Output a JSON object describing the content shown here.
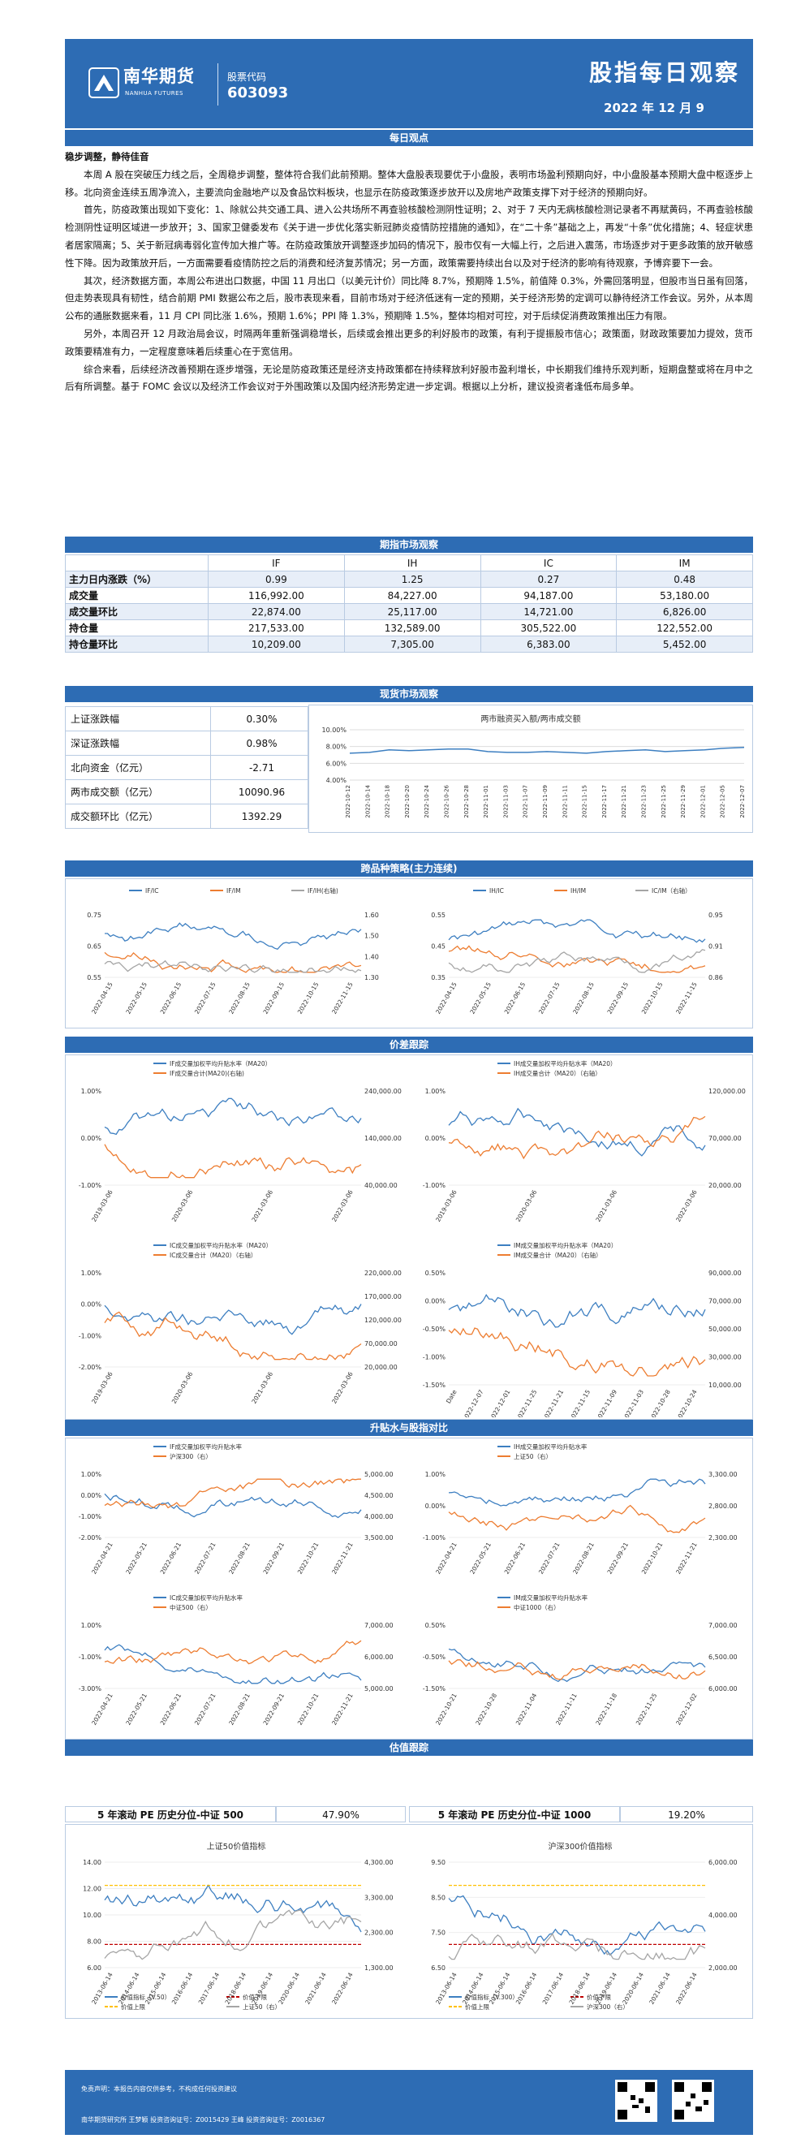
{
  "header": {
    "brand": "南华期货",
    "brand_en": "NANHUA FUTURES",
    "code_label": "股票代码",
    "code": "603093",
    "title": "股指每日观察",
    "date": "2022 年 12 月 9"
  },
  "sections": {
    "daily": "每日观点",
    "futures": "期指市场观察",
    "spot": "现货市场观察",
    "spread": "跨品种策略(主力连续)",
    "price": "价差跟踪",
    "basis": "升贴水与股指对比",
    "valuation": "估值跟踪"
  },
  "daily": {
    "headline": "稳步调整，静待佳音",
    "p1": "本周 A 股在突破压力线之后，全周稳步调整，整体符合我们此前预期。整体大盘股表现要优于小盘股，表明市场盈利预期向好，中小盘股基本预期大盘中枢逐步上移。北向资金连续五周净流入，主要流向金融地产以及食品饮料板块，也显示在防疫政策逐步放开以及房地产政策支撑下对于经济的预期向好。",
    "p2": "首先，防疫政策出现如下变化：1、除就公共交通工具、进入公共场所不再查验核酸检测阴性证明；2、对于 7 天内无病核酸检测记录者不再赋黄码，不再查验核酸检测阴性证明区域进一步放开；3、国家卫健委发布《关于进一步优化落实新冠肺炎疫情防控措施的通知》，在“二十条”基础之上，再发“十条”优化措施；4、轻症状患者居家隔离；5、关于新冠病毒弱化宣传加大推广等。在防疫政策放开调整逐步加码的情况下，股市仅有一大幅上行，之后进入震荡，市场逐步对于更多政策的放开敏感性下降。因为政策放开后，一方面需要看疫情防控之后的消费和经济复苏情况；另一方面，政策需要持续出台以及对于经济的影响有待观察，予博弈要下一会。",
    "p3": "其次，经济数据方面，本周公布进出口数据，中国 11 月出口（以美元计价）同比降 8.7%，预期降 1.5%，前值降 0.3%，外需回落明显，但股市当日虽有回落，但走势表现具有韧性，结合前期 PMI 数据公布之后，股市表现来看，目前市场对于经济低迷有一定的预期，关于经济形势的定调可以静待经济工作会议。另外，从本周公布的通胀数据来看，11 月 CPI 同比涨 1.6%，预期 1.6%；PPI 降 1.3%，预期降 1.5%，整体均相对可控，对于后续促消费政策推出压力有限。",
    "p4": "另外，本周召开 12 月政治局会议，时隔两年重新强调稳增长，后续或会推出更多的利好股市的政策，有利于提振股市信心；政策面，财政政策要加力提效，货币政策要精准有力，一定程度意味着后续重心在于宽信用。",
    "p5": "综合来看，后续经济改善预期在逐步增强，无论是防疫政策还是经济支持政策都在持续释放利好股市盈利增长，中长期我们维持乐观判断，短期盘整或将在月中之后有所调整。基于 FOMC 会议以及经济工作会议对于外围政策以及国内经济形势定进一步定调。根据以上分析，建议投资者逢低布局多单。"
  },
  "futures": {
    "cols": [
      "",
      "IF",
      "IH",
      "IC",
      "IM"
    ],
    "rows": [
      {
        "label": "主力日内涨跌（%）",
        "vals": [
          "0.99",
          "1.25",
          "0.27",
          "0.48"
        ]
      },
      {
        "label": "成交量",
        "vals": [
          "116,992.00",
          "84,227.00",
          "94,187.00",
          "53,180.00"
        ]
      },
      {
        "label": "成交量环比",
        "vals": [
          "22,874.00",
          "25,117.00",
          "14,721.00",
          "6,826.00"
        ]
      },
      {
        "label": "持仓量",
        "vals": [
          "217,533.00",
          "132,589.00",
          "305,522.00",
          "122,552.00"
        ]
      },
      {
        "label": "持仓量环比",
        "vals": [
          "10,209.00",
          "7,305.00",
          "6,383.00",
          "5,452.00"
        ]
      }
    ]
  },
  "spot": {
    "rows": [
      {
        "label": "上证涨跌幅",
        "val": "0.30%"
      },
      {
        "label": "深证涨跌幅",
        "val": "0.98%"
      },
      {
        "label": "北向资金（亿元）",
        "val": "-2.71"
      },
      {
        "label": "两市成交额（亿元）",
        "val": "10090.96"
      },
      {
        "label": "成交额环比（亿元）",
        "val": "1392.29"
      }
    ]
  },
  "valuation": {
    "left_label": "5 年滚动 PE 历史分位-中证 500",
    "left_val": "47.90%",
    "right_label": "5 年滚动 PE 历史分位-中证 1000",
    "right_val": "19.20%"
  },
  "footer": {
    "line1": "免责声明：本报告内容仅供参考，不构成任何投资建议",
    "line2": "南华期货研究所   王梦颖   投资咨询证号：Z0015429   王峰   投资咨询证号：Z0016367"
  },
  "chart_data": [
    {
      "id": "margin",
      "type": "line",
      "title": "两市融资买入额/两市成交额",
      "ylim": [
        4,
        10
      ],
      "yticks": [
        "10.00%",
        "8.00%",
        "6.00%",
        "4.00%"
      ],
      "x": [
        "2022-10-12",
        "2022-10-14",
        "2022-10-18",
        "2022-10-20",
        "2022-10-24",
        "2022-10-26",
        "2022-10-28",
        "2022-11-01",
        "2022-11-03",
        "2022-11-07",
        "2022-11-09",
        "2022-11-11",
        "2022-11-15",
        "2022-11-17",
        "2022-11-21",
        "2022-11-23",
        "2022-11-25",
        "2022-11-29",
        "2022-12-01",
        "2022-12-05",
        "2022-12-07"
      ],
      "values": [
        7.2,
        7.3,
        7.6,
        7.5,
        7.6,
        7.7,
        7.7,
        7.4,
        7.3,
        7.3,
        7.4,
        7.3,
        7.2,
        7.4,
        7.5,
        7.6,
        7.4,
        7.5,
        7.6,
        7.8,
        7.9
      ],
      "color": "#3d7fc1"
    },
    {
      "id": "ratio1",
      "type": "line",
      "series": [
        {
          "name": "IF/IC",
          "color": "#3d7fc1"
        },
        {
          "name": "IF/IM",
          "color": "#ed7d31"
        },
        {
          "name": "IF/IH(右轴)",
          "color": "#a5a5a5"
        }
      ],
      "x": [
        "2022-04-15",
        "2022-05-15",
        "2022-06-15",
        "2022-07-15",
        "2022-08-15",
        "2022-09-15",
        "2022-10-15",
        "2022-11-15"
      ],
      "yticks_left": [
        "0.75",
        "0.65",
        "0.55"
      ],
      "yticks_right": [
        "1.60",
        "1.50",
        "1.40",
        "1.30"
      ]
    },
    {
      "id": "ratio2",
      "type": "line",
      "series": [
        {
          "name": "IH/IC",
          "color": "#3d7fc1"
        },
        {
          "name": "IH/IM",
          "color": "#ed7d31"
        },
        {
          "name": "IC/IM（右轴）",
          "color": "#a5a5a5"
        }
      ],
      "x": [
        "2022-04-15",
        "2022-05-15",
        "2022-06-15",
        "2022-07-15",
        "2022-08-15",
        "2022-09-15",
        "2022-10-15",
        "2022-11-15"
      ],
      "yticks_left": [
        "0.55",
        "0.45",
        "0.35"
      ],
      "yticks_right": [
        "0.95",
        "0.91",
        "0.86"
      ]
    },
    {
      "id": "p_if",
      "type": "line",
      "series": [
        {
          "name": "IF成交量加权平均升贴水率（MA20）",
          "color": "#3d7fc1"
        },
        {
          "name": "IF成交量合计(MA20)(右轴)",
          "color": "#ed7d31"
        }
      ],
      "x": [
        "2019-03-06",
        "2020-03-06",
        "2021-03-06",
        "2022-03-06"
      ],
      "yticks_left": [
        "1.00%",
        "0.00%",
        "-1.00%"
      ],
      "yticks_right": [
        "240,000.00",
        "140,000.00",
        "40,000.00"
      ]
    },
    {
      "id": "p_ih",
      "type": "line",
      "series": [
        {
          "name": "IH成交量加权平均升贴水率（MA20）",
          "color": "#3d7fc1"
        },
        {
          "name": "IH成交量合计（MA20）（右轴）",
          "color": "#ed7d31"
        }
      ],
      "x": [
        "2019-03-06",
        "2020-03-06",
        "2021-03-06",
        "2022-03-06"
      ],
      "yticks_left": [
        "1.00%",
        "0.00%",
        "-1.00%"
      ],
      "yticks_right": [
        "120,000.00",
        "70,000.00",
        "20,000.00"
      ]
    },
    {
      "id": "p_ic",
      "type": "line",
      "series": [
        {
          "name": "IC成交量加权平均升贴水率（MA20）",
          "color": "#3d7fc1"
        },
        {
          "name": "IC成交量合计（MA20）（右轴）",
          "color": "#ed7d31"
        }
      ],
      "x": [
        "2019-03-06",
        "2020-03-06",
        "2021-03-06",
        "2022-03-06"
      ],
      "yticks_left": [
        "1.00%",
        "0.00%",
        "-1.00%",
        "-2.00%"
      ],
      "yticks_right": [
        "220,000.00",
        "170,000.00",
        "120,000.00",
        "70,000.00",
        "20,000.00"
      ]
    },
    {
      "id": "p_im",
      "type": "line",
      "series": [
        {
          "name": "IM成交量加权平均升贴水率（MA20）",
          "color": "#3d7fc1"
        },
        {
          "name": "IM成交量合计（MA20）（右轴）",
          "color": "#ed7d31"
        }
      ],
      "x": [
        "Date",
        "2022-12-07",
        "2022-12-01",
        "2022-11-25",
        "2022-11-21",
        "2022-11-15",
        "2022-11-09",
        "2022-11-03",
        "2022-10-28",
        "2022-10-24"
      ],
      "yticks_left": [
        "0.50%",
        "0.00%",
        "-0.50%",
        "-1.00%",
        "-1.50%"
      ],
      "yticks_right": [
        "90,000.00",
        "70,000.00",
        "50,000.00",
        "30,000.00",
        "10,000.00"
      ]
    },
    {
      "id": "b_if",
      "type": "line",
      "series": [
        {
          "name": "IF成交量加权平均升贴水率",
          "color": "#3d7fc1"
        },
        {
          "name": "沪深300（右）",
          "color": "#ed7d31"
        }
      ],
      "x": [
        "2022-04-21",
        "2022-05-21",
        "2022-06-21",
        "2022-07-21",
        "2022-08-21",
        "2022-09-21",
        "2022-10-21",
        "2022-11-21"
      ],
      "yticks_left": [
        "1.00%",
        "0.00%",
        "-1.00%",
        "-2.00%"
      ],
      "yticks_right": [
        "5,000.00",
        "4,500.00",
        "4,000.00",
        "3,500.00"
      ]
    },
    {
      "id": "b_ih",
      "type": "line",
      "series": [
        {
          "name": "IH成交量加权平均升贴水率",
          "color": "#3d7fc1"
        },
        {
          "name": "上证50（右）",
          "color": "#ed7d31"
        }
      ],
      "x": [
        "2022-04-21",
        "2022-05-21",
        "2022-06-21",
        "2022-07-21",
        "2022-08-21",
        "2022-09-21",
        "2022-10-21",
        "2022-11-21"
      ],
      "yticks_left": [
        "1.00%",
        "0.00%",
        "-1.00%"
      ],
      "yticks_right": [
        "3,300.00",
        "2,800.00",
        "2,300.00"
      ]
    },
    {
      "id": "b_ic",
      "type": "line",
      "series": [
        {
          "name": "IC成交量加权平均升贴水率",
          "color": "#3d7fc1"
        },
        {
          "name": "中证500（右）",
          "color": "#ed7d31"
        }
      ],
      "x": [
        "2022-04-21",
        "2022-05-21",
        "2022-06-21",
        "2022-07-21",
        "2022-08-21",
        "2022-09-21",
        "2022-10-21",
        "2022-11-21"
      ],
      "yticks_left": [
        "1.00%",
        "-1.00%",
        "-3.00%"
      ],
      "yticks_right": [
        "7,000.00",
        "6,000.00",
        "5,000.00"
      ]
    },
    {
      "id": "b_im",
      "type": "line",
      "series": [
        {
          "name": "IM成交量加权平均升贴水率",
          "color": "#3d7fc1"
        },
        {
          "name": "中证1000（右）",
          "color": "#ed7d31"
        }
      ],
      "x": [
        "2022-10-21",
        "2022-10-28",
        "2022-11-04",
        "2022-11-11",
        "2022-11-18",
        "2022-11-25",
        "2022-12-02"
      ],
      "yticks_left": [
        "0.50%",
        "-0.50%",
        "-1.50%"
      ],
      "yticks_right": [
        "7,000.00",
        "6,500.00",
        "6,000.00"
      ]
    },
    {
      "id": "v50",
      "type": "line",
      "title": "上证50价值指标",
      "series": [
        {
          "name": "价值指标（V.50）",
          "color": "#3d7fc1"
        },
        {
          "name": "价值下限",
          "color": "#c00000"
        },
        {
          "name": "价值上限",
          "color": "#ffc000"
        },
        {
          "name": "上证50（右）",
          "color": "#a5a5a5"
        }
      ],
      "x": [
        "2013-06-14",
        "2014-06-14",
        "2015-06-14",
        "2016-06-14",
        "2017-06-14",
        "2018-06-14",
        "2019-06-14",
        "2020-06-14",
        "2021-06-14",
        "2022-06-14"
      ],
      "yticks_left": [
        "14.00",
        "12.00",
        "10.00",
        "8.00",
        "6.00"
      ],
      "yticks_right": [
        "4,300.00",
        "3,300.00",
        "2,300.00",
        "1,300.00"
      ]
    },
    {
      "id": "v300",
      "type": "line",
      "title": "沪深300价值指标",
      "series": [
        {
          "name": "价值指标（V.300）",
          "color": "#3d7fc1"
        },
        {
          "name": "价值下限",
          "color": "#c00000"
        },
        {
          "name": "价值上限",
          "color": "#ffc000"
        },
        {
          "name": "沪深300（右）",
          "color": "#a5a5a5"
        }
      ],
      "x": [
        "2013-06-14",
        "2014-06-14",
        "2015-06-14",
        "2016-06-14",
        "2017-06-14",
        "2018-06-14",
        "2019-06-14",
        "2020-06-14",
        "2021-06-14",
        "2022-06-14"
      ],
      "yticks_left": [
        "9.50",
        "8.50",
        "7.50",
        "6.50"
      ],
      "yticks_right": [
        "6,000.00",
        "4,000.00",
        "2,000.00"
      ]
    }
  ]
}
